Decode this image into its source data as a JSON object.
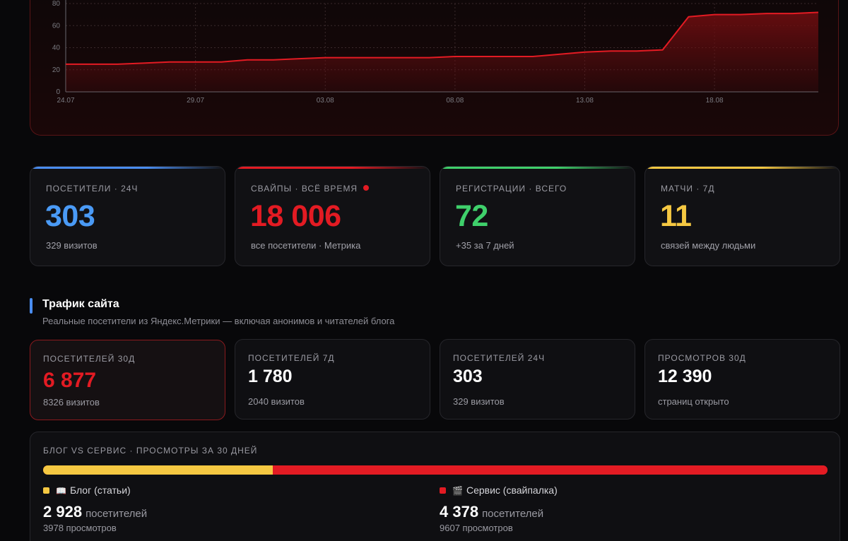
{
  "chart_data": {
    "type": "area",
    "x": [
      "24.07",
      "25.07",
      "26.07",
      "27.07",
      "28.07",
      "29.07",
      "30.07",
      "31.07",
      "01.08",
      "02.08",
      "03.08",
      "04.08",
      "05.08",
      "06.08",
      "07.08",
      "08.08",
      "09.08",
      "10.08",
      "11.08",
      "12.08",
      "13.08",
      "14.08",
      "15.08",
      "16.08",
      "17.08",
      "18.08",
      "19.08",
      "20.08",
      "21.08",
      "22.08"
    ],
    "x_tick_labels": [
      "24.07",
      "29.07",
      "03.08",
      "08.08",
      "13.08",
      "18.08"
    ],
    "y_tick_labels": [
      "0",
      "20",
      "40",
      "60",
      "80"
    ],
    "series": [
      {
        "values": [
          25,
          25,
          25,
          26,
          27,
          27,
          27,
          29,
          29,
          30,
          31,
          31,
          31,
          31,
          31,
          32,
          32,
          32,
          32,
          34,
          36,
          37,
          37,
          38,
          68,
          70,
          70,
          71,
          71,
          72
        ]
      }
    ],
    "ylim": [
      0,
      80
    ],
    "grid": true,
    "colors": {
      "line": "#e31b23",
      "fill": "#6e0d10"
    }
  },
  "kpis": [
    {
      "label": "ПОСЕТИТЕЛИ · 24Ч",
      "value": "303",
      "sub": "329 визитов",
      "color": "#4a9af5",
      "topline": "#4a8df0"
    },
    {
      "label": "СВАЙПЫ · ВСЁ ВРЕМЯ",
      "value": "18 006",
      "sub": "все посетители · Метрика",
      "color": "#e31b23",
      "topline": "#e31b23"
    },
    {
      "label": "РЕГИСТРАЦИИ · ВСЕГО",
      "value": "72",
      "sub": "+35 за 7 дней",
      "color": "#3fd06b",
      "topline": "#3fd06b"
    },
    {
      "label": "МАТЧИ · 7Д",
      "value": "11",
      "sub": "связей между людьми",
      "color": "#f5c842",
      "topline": "#f5c842"
    }
  ],
  "traffic": {
    "title": "Трафик сайта",
    "subtitle": "Реальные посетители из Яндекс.Метрики — включая анонимов и читателей блога",
    "cards": [
      {
        "label": "ПОСЕТИТЕЛЕЙ 30Д",
        "value": "6 877",
        "sub": "8326 визитов"
      },
      {
        "label": "ПОСЕТИТЕЛЕЙ 7Д",
        "value": "1 780",
        "sub": "2040 визитов"
      },
      {
        "label": "ПОСЕТИТЕЛЕЙ 24Ч",
        "value": "303",
        "sub": "329 визитов"
      },
      {
        "label": "ПРОСМОТРОВ 30Д",
        "value": "12 390",
        "sub": "страниц открыто"
      }
    ]
  },
  "split": {
    "label": "БЛОГ VS СЕРВИС · ПРОСМОТРЫ ЗА 30 ДНЕЙ",
    "blog_share": 0.293,
    "blog": {
      "legend": "Блог (статьи)",
      "icon": "book-icon",
      "emoji": "📖",
      "visitors": "2 928",
      "unit": "посетителей",
      "views": "3978 просмотров",
      "color": "#f5c842"
    },
    "service": {
      "legend": "Сервис (свайпалка)",
      "icon": "clapper-icon",
      "emoji": "🎬",
      "visitors": "4 378",
      "unit": "посетителей",
      "views": "9607 просмотров",
      "color": "#e31b23"
    }
  }
}
